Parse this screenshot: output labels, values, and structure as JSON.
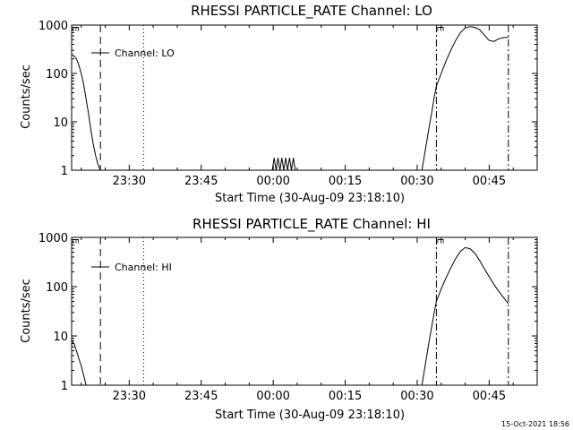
{
  "footer": {
    "timestamp": "15-Oct-2021 18:56"
  },
  "chart_data": [
    {
      "type": "line",
      "title": "RHESSI PARTICLE_RATE Channel: LO",
      "xlabel": "Start Time (30-Aug-09 23:18:10)",
      "ylabel": "Counts/sec",
      "yscale": "log",
      "ylim": [
        1,
        1000
      ],
      "xlim": [
        0,
        97
      ],
      "x_ticks": [
        {
          "x": 12,
          "label": "23:30"
        },
        {
          "x": 27,
          "label": "23:45"
        },
        {
          "x": 42,
          "label": "00:00"
        },
        {
          "x": 57,
          "label": "00:15"
        },
        {
          "x": 72,
          "label": "00:30"
        },
        {
          "x": 87,
          "label": "00:45"
        }
      ],
      "y_ticks": [
        {
          "y": 1,
          "label": "1"
        },
        {
          "y": 10,
          "label": "10"
        },
        {
          "y": 100,
          "label": "100"
        },
        {
          "y": 1000,
          "label": "1000"
        }
      ],
      "legend": "Channel: LO",
      "markers": [
        {
          "x": 6,
          "style": "dashed",
          "label": "E"
        },
        {
          "x": 15,
          "style": "dotted",
          "label": ""
        },
        {
          "x": 76,
          "style": "dashdot",
          "label": ""
        },
        {
          "x": 91,
          "style": "dashdot",
          "label": ""
        }
      ],
      "marker_labels": [
        {
          "x": 0.2,
          "text": "E"
        },
        {
          "x": 76.2,
          "text": "E"
        }
      ],
      "series": [
        {
          "name": "Channel: LO",
          "segments": [
            {
              "x": [
                0,
                0.5,
                1,
                1.5,
                2,
                2.5,
                3,
                3.5,
                4,
                4.5,
                5,
                5.5,
                6
              ],
              "y": [
                250,
                230,
                200,
                150,
                100,
                60,
                30,
                15,
                7,
                3.5,
                2,
                1.3,
                1
              ]
            },
            {
              "x": [
                41.8,
                42.2,
                42.6,
                43.0,
                43.4,
                43.8,
                44.2,
                44.6,
                45.0,
                45.4,
                45.8,
                46.2,
                46.6
              ],
              "y": [
                1,
                1.8,
                1,
                1.8,
                1,
                1.8,
                1,
                1.8,
                1,
                1.8,
                1,
                1.8,
                1
              ]
            },
            {
              "x": [
                73,
                73.5,
                74,
                74.5,
                75,
                75.5,
                76,
                77,
                78,
                79,
                80,
                81,
                82,
                83,
                84,
                85,
                86,
                87,
                88,
                89,
                90,
                91
              ],
              "y": [
                1,
                2,
                4,
                8,
                15,
                30,
                55,
                100,
                180,
                300,
                480,
                700,
                870,
                930,
                900,
                800,
                620,
                480,
                460,
                520,
                550,
                560
              ]
            }
          ]
        }
      ]
    },
    {
      "type": "line",
      "title": "RHESSI PARTICLE_RATE Channel: HI",
      "xlabel": "Start Time (30-Aug-09 23:18:10)",
      "ylabel": "Counts/sec",
      "yscale": "log",
      "ylim": [
        1,
        1000
      ],
      "xlim": [
        0,
        97
      ],
      "x_ticks": [
        {
          "x": 12,
          "label": "23:30"
        },
        {
          "x": 27,
          "label": "23:45"
        },
        {
          "x": 42,
          "label": "00:00"
        },
        {
          "x": 57,
          "label": "00:15"
        },
        {
          "x": 72,
          "label": "00:30"
        },
        {
          "x": 87,
          "label": "00:45"
        }
      ],
      "y_ticks": [
        {
          "y": 1,
          "label": "1"
        },
        {
          "y": 10,
          "label": "10"
        },
        {
          "y": 100,
          "label": "100"
        },
        {
          "y": 1000,
          "label": "1000"
        }
      ],
      "legend": "Channel: HI",
      "markers": [
        {
          "x": 6,
          "style": "dashed",
          "label": ""
        },
        {
          "x": 15,
          "style": "dotted",
          "label": ""
        },
        {
          "x": 76,
          "style": "dashdot",
          "label": ""
        },
        {
          "x": 91,
          "style": "dashdot",
          "label": ""
        }
      ],
      "marker_labels": [
        {
          "x": 0.2,
          "text": "E"
        },
        {
          "x": 76.2,
          "text": "E"
        }
      ],
      "series": [
        {
          "name": "Channel: HI",
          "segments": [
            {
              "x": [
                0,
                0.5,
                1,
                1.5,
                2,
                2.5,
                3
              ],
              "y": [
                8,
                7,
                5,
                3.5,
                2.5,
                1.6,
                1
              ]
            },
            {
              "x": [
                73,
                73.5,
                74,
                74.5,
                75,
                75.5,
                76,
                77,
                78,
                79,
                80,
                81,
                82,
                83,
                84,
                85,
                86,
                87,
                88,
                89,
                90,
                91
              ],
              "y": [
                1,
                2,
                4,
                8,
                15,
                28,
                50,
                90,
                150,
                240,
                370,
                520,
                620,
                590,
                480,
                340,
                230,
                160,
                110,
                80,
                60,
                45
              ]
            }
          ]
        }
      ]
    }
  ]
}
